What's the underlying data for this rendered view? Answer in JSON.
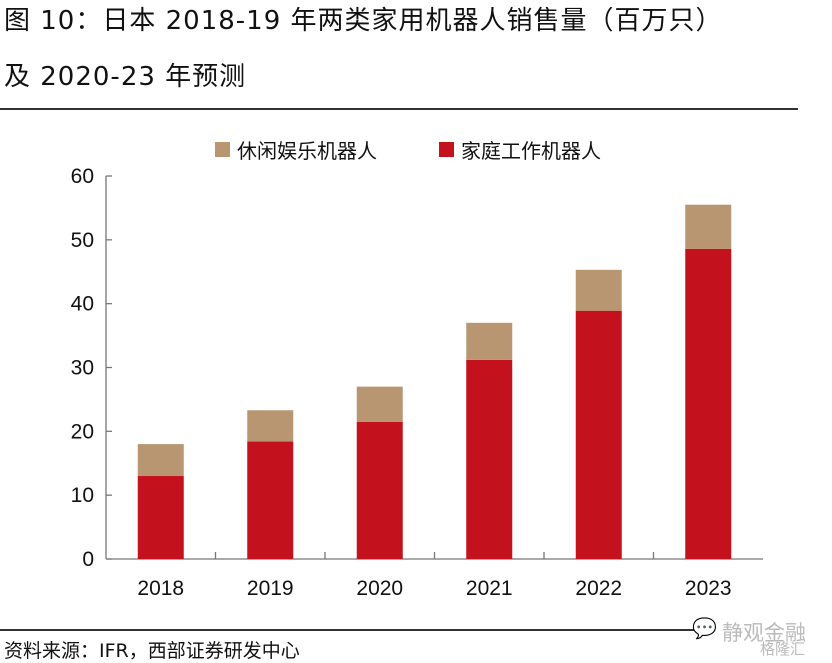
{
  "title_line1": "图 10：日本 2018-19 年两类家用机器人销售量（百万只）",
  "title_line2": "及 2020-23 年预测",
  "source": "资料来源：IFR，西部证券研发中心",
  "watermark": {
    "line1": "静观金融",
    "line2": "格隆汇",
    "icon": "wechat-icon"
  },
  "chart_data": {
    "type": "bar",
    "stacked": true,
    "categories": [
      "2018",
      "2019",
      "2020",
      "2021",
      "2022",
      "2023"
    ],
    "series": [
      {
        "name": "家庭工作机器人",
        "color": "#c3111e",
        "values": [
          13.0,
          18.4,
          21.5,
          31.2,
          38.9,
          48.6
        ]
      },
      {
        "name": "休闲娱乐机器人",
        "color": "#b89671",
        "values": [
          5.0,
          4.9,
          5.5,
          5.8,
          6.4,
          6.9
        ]
      }
    ],
    "legend_order": [
      1,
      0
    ],
    "ylim": [
      0,
      60
    ],
    "yticks": [
      0,
      10,
      20,
      30,
      40,
      50,
      60
    ],
    "xlabel": "",
    "ylabel": "",
    "grid": false,
    "legend_position": "top"
  }
}
